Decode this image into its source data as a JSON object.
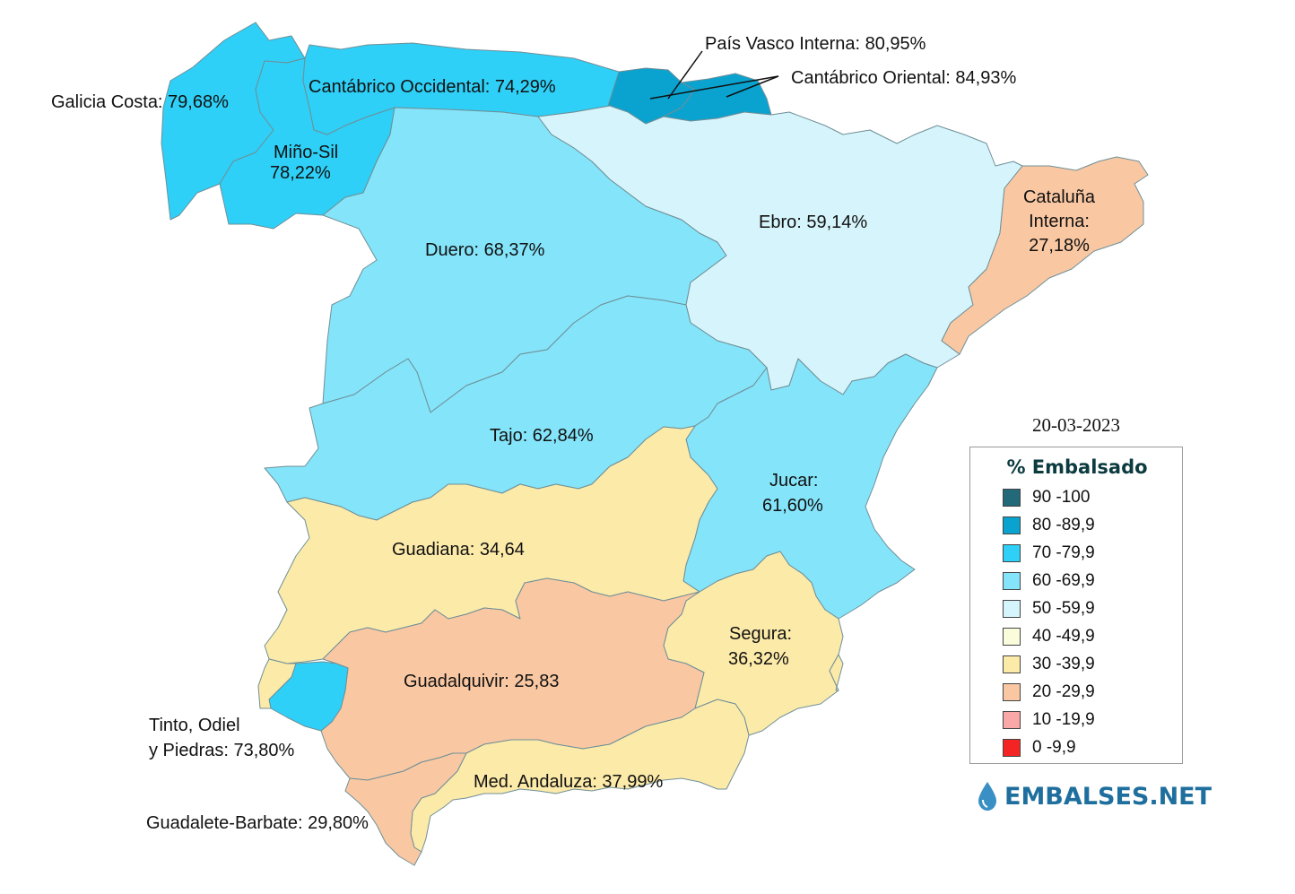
{
  "date": "20-03-2023",
  "legend": {
    "title": "% Embalsado",
    "items": [
      {
        "label": "90 -100",
        "color": "#22697a"
      },
      {
        "label": "80 -89,9",
        "color": "#0aa3d0"
      },
      {
        "label": "70 -79,9",
        "color": "#2ed0f7"
      },
      {
        "label": "60 -69,9",
        "color": "#84e4f9"
      },
      {
        "label": "50 -59,9",
        "color": "#d6f4fb"
      },
      {
        "label": "40 -49,9",
        "color": "#fbfcdc"
      },
      {
        "label": "30 -39,9",
        "color": "#fceaa9"
      },
      {
        "label": "20 -29,9",
        "color": "#f9c8a3"
      },
      {
        "label": "10 -19,9",
        "color": "#f9a7a7"
      },
      {
        "label": "0 -9,9",
        "color": "#f52424"
      }
    ]
  },
  "brand": "EMBALSES.NET",
  "basins": [
    {
      "name": "Galicia Costa",
      "text": "Galicia Costa: 79,68%",
      "value": 79.68,
      "color": "#2ed0f7"
    },
    {
      "name": "Miño-Sil",
      "text": [
        "Miño-Sil",
        "78,22%"
      ],
      "value": 78.22,
      "color": "#2ed0f7"
    },
    {
      "name": "Cantábrico Occidental",
      "text": "Cantábrico Occidental: 74,29%",
      "value": 74.29,
      "color": "#2ed0f7"
    },
    {
      "name": "País Vasco Interna",
      "text": "País Vasco Interna: 80,95%",
      "value": 80.95,
      "color": "#0aa3d0"
    },
    {
      "name": "Cantábrico Oriental",
      "text": "Cantábrico Oriental: 84,93%",
      "value": 84.93,
      "color": "#0aa3d0"
    },
    {
      "name": "Duero",
      "text": "Duero: 68,37%",
      "value": 68.37,
      "color": "#84e4f9"
    },
    {
      "name": "Ebro",
      "text": "Ebro: 59,14%",
      "value": 59.14,
      "color": "#d6f4fb"
    },
    {
      "name": "Cataluña Interna",
      "text": [
        "Cataluña",
        "Interna:",
        "27,18%"
      ],
      "value": 27.18,
      "color": "#f9c8a3"
    },
    {
      "name": "Tajo",
      "text": "Tajo: 62,84%",
      "value": 62.84,
      "color": "#84e4f9"
    },
    {
      "name": "Jucar",
      "text": [
        "Jucar:",
        "61,60%"
      ],
      "value": 61.6,
      "color": "#84e4f9"
    },
    {
      "name": "Guadiana",
      "text": "Guadiana: 34,64",
      "value": 34.64,
      "color": "#fceaa9"
    },
    {
      "name": "Segura",
      "text": [
        "Segura:",
        "36,32%"
      ],
      "value": 36.32,
      "color": "#fceaa9"
    },
    {
      "name": "Guadalquivir",
      "text": "Guadalquivir: 25,83",
      "value": 25.83,
      "color": "#f9c8a3"
    },
    {
      "name": "Tinto, Odiel y Piedras",
      "text": [
        "Tinto, Odiel",
        "y Piedras: 73,80%"
      ],
      "value": 73.8,
      "color": "#2ed0f7"
    },
    {
      "name": "Med. Andaluza",
      "text": "Med. Andaluza: 37,99%",
      "value": 37.99,
      "color": "#fceaa9"
    },
    {
      "name": "Guadalete-Barbate",
      "text": "Guadalete-Barbate: 29,80%",
      "value": 29.8,
      "color": "#f9c8a3"
    }
  ]
}
